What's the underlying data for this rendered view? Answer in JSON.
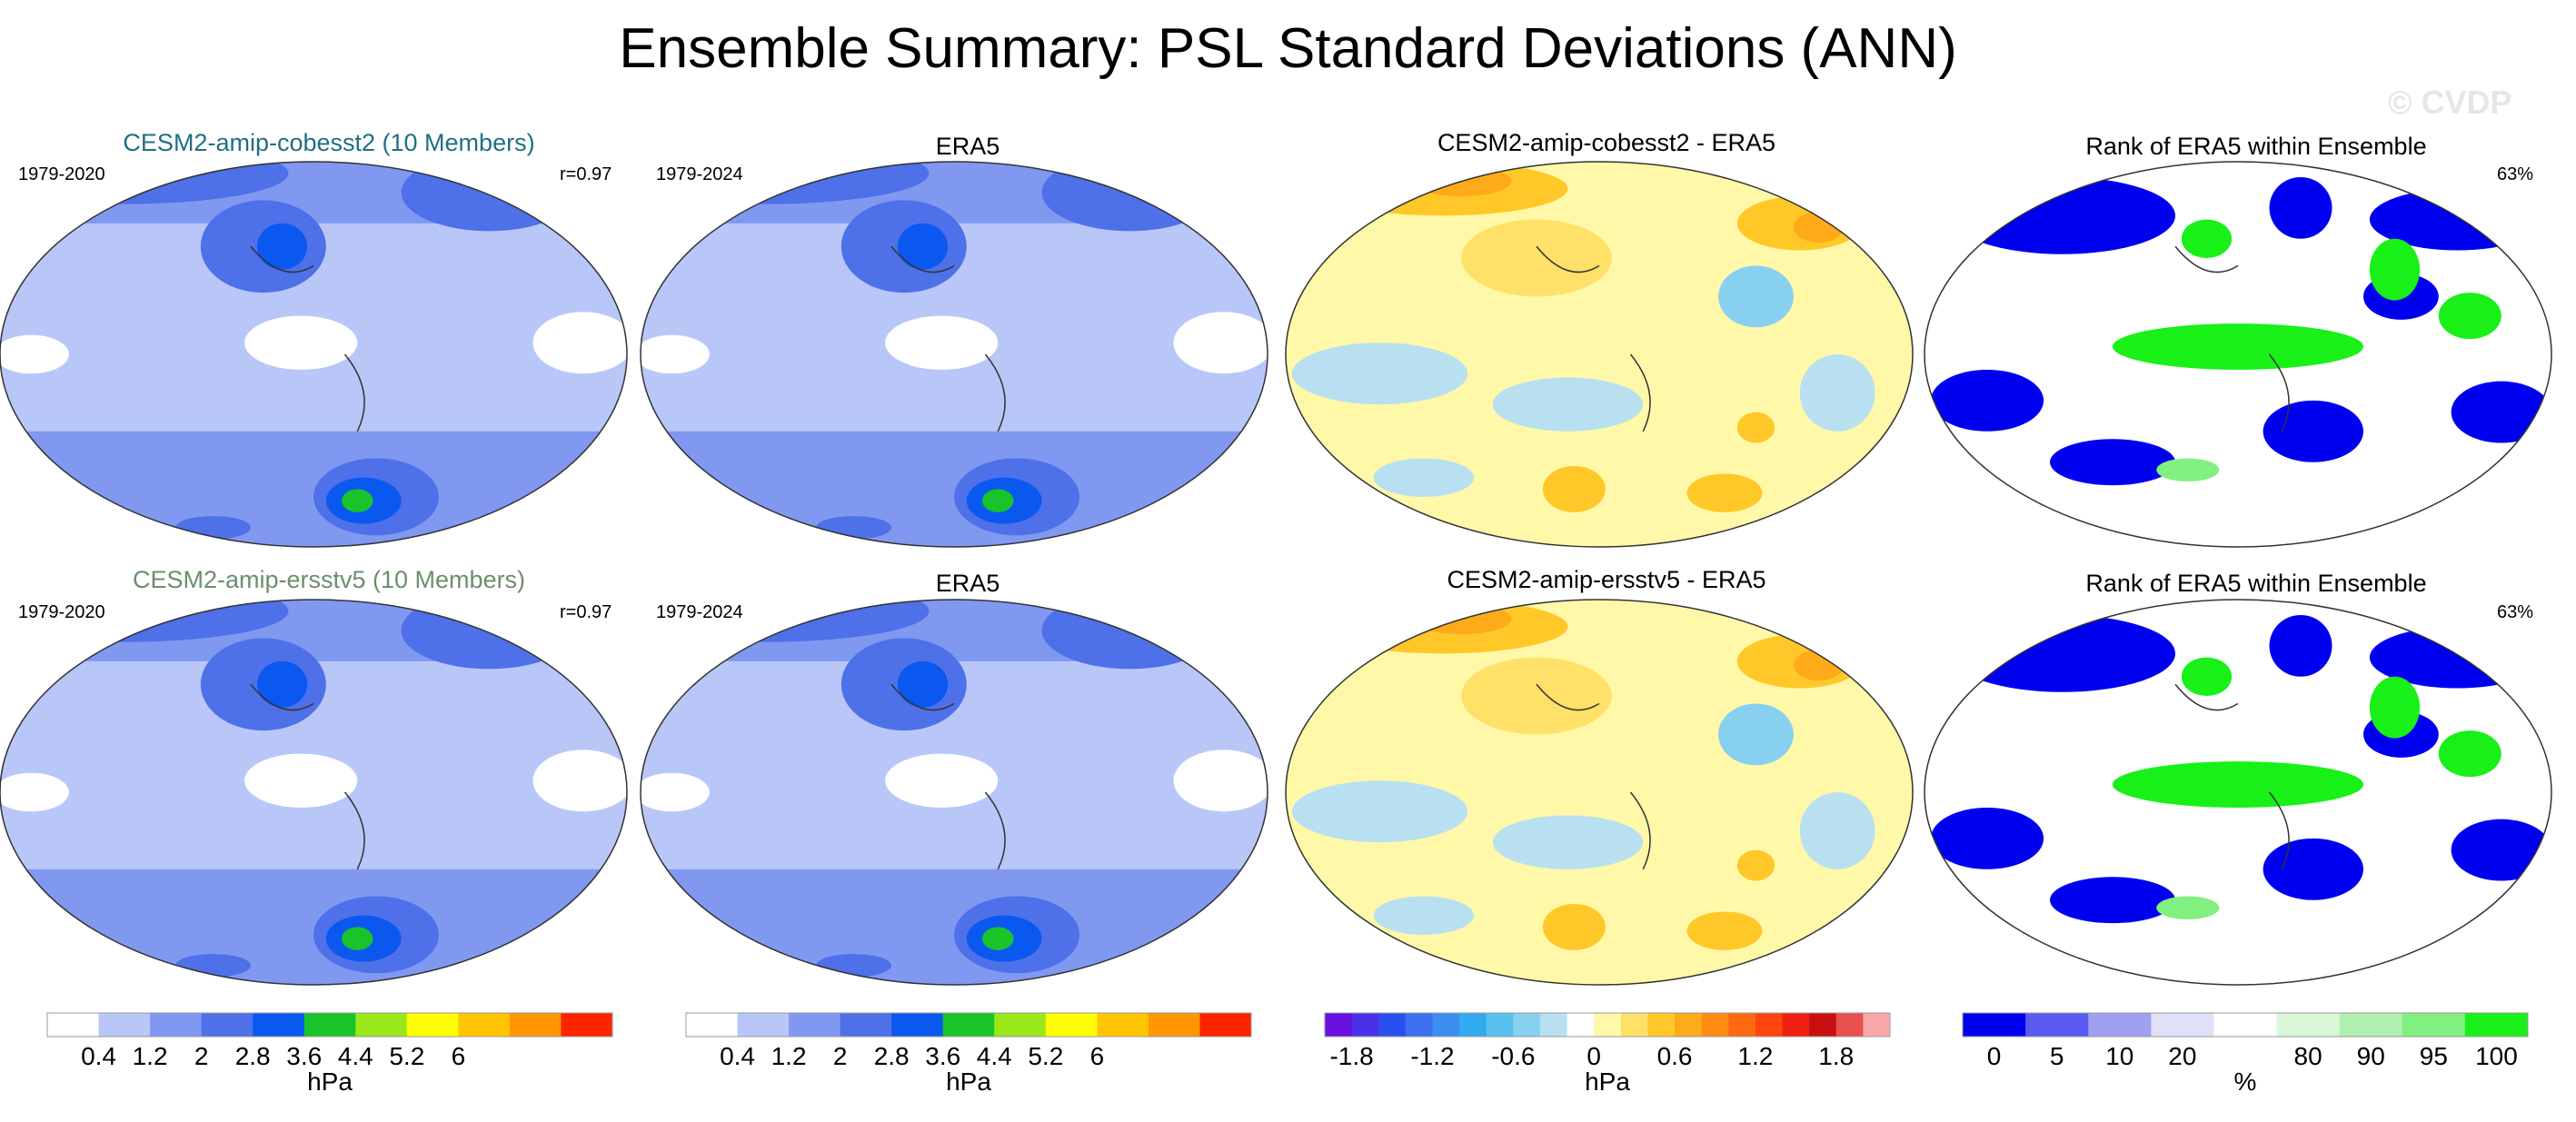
{
  "title": "Ensemble Summary: PSL Standard Deviations (ANN)",
  "watermark": "© CVDP",
  "colors": {
    "model1_title": "#1f6f82",
    "model2_title": "#6b8f6b",
    "sd_scale": [
      "#ffffff",
      "#b8c7f8",
      "#8098f0",
      "#4e70e8",
      "#0a58f0",
      "#18c42a",
      "#9ae81a",
      "#ffff00",
      "#ffc400",
      "#ff9600",
      "#ff2400"
    ],
    "diff_scale": [
      "#6a10e0",
      "#4a30e8",
      "#2850f0",
      "#3c70f0",
      "#3c8ef0",
      "#30aaf0",
      "#5ac0f0",
      "#88d0f0",
      "#b8e0f0",
      "#ffffff",
      "#fff8a8",
      "#ffe068",
      "#ffc828",
      "#ffaa18",
      "#ff8c10",
      "#ff6a10",
      "#ff4410",
      "#f02010",
      "#c81010",
      "#e85050",
      "#f8a8a8"
    ],
    "rank_scale": [
      "#0000f0",
      "#5a5af0",
      "#a0a0f0",
      "#e0e0f8",
      "#ffffff",
      "#d8f8d8",
      "#b0f0b0",
      "#80f080",
      "#18f018"
    ]
  },
  "panels": [
    {
      "title": "CESM2-amip-cobesst2 (10 Members)",
      "left": "1979-2020",
      "right": "r=0.97",
      "title_color": "model1_title"
    },
    {
      "title": "ERA5",
      "left": "1979-2024",
      "right": ""
    },
    {
      "title": "CESM2-amip-cobesst2 - ERA5",
      "left": "",
      "right": ""
    },
    {
      "title": "Rank of ERA5 within Ensemble",
      "left": "",
      "right": "63%"
    },
    {
      "title": "CESM2-amip-ersstv5 (10 Members)",
      "left": "1979-2020",
      "right": "r=0.97",
      "title_color": "model2_title"
    },
    {
      "title": "ERA5",
      "left": "1979-2024",
      "right": ""
    },
    {
      "title": "CESM2-amip-ersstv5 - ERA5",
      "left": "",
      "right": ""
    },
    {
      "title": "Rank of ERA5 within Ensemble",
      "left": "",
      "right": "63%"
    }
  ],
  "colorbars": [
    {
      "ticks": [
        "0.4",
        "1.2",
        "2",
        "2.8",
        "3.6",
        "4.4",
        "5.2",
        "6"
      ],
      "unit": "hPa"
    },
    {
      "ticks": [
        "0.4",
        "1.2",
        "2",
        "2.8",
        "3.6",
        "4.4",
        "5.2",
        "6"
      ],
      "unit": "hPa"
    },
    {
      "ticks": [
        "-1.8",
        "-1.2",
        "-0.6",
        "0",
        "0.6",
        "1.2",
        "1.8"
      ],
      "unit": "hPa"
    },
    {
      "ticks": [
        "0",
        "5",
        "10",
        "20",
        "80",
        "90",
        "95",
        "100"
      ],
      "unit": "%"
    }
  ],
  "chart_data": [
    {
      "type": "heatmap",
      "title": "CESM2-amip-cobesst2 (10 Members)",
      "variable": "PSL standard deviation",
      "units": "hPa",
      "period": "1979-2020",
      "pattern_correlation": 0.97,
      "contour_levels": [
        0.4,
        0.8,
        1.2,
        1.6,
        2,
        2.4,
        2.8,
        3.2,
        3.6,
        4,
        4.4,
        4.8,
        5.2,
        5.6,
        6
      ]
    },
    {
      "type": "heatmap",
      "title": "ERA5",
      "variable": "PSL standard deviation",
      "units": "hPa",
      "period": "1979-2024",
      "contour_levels": [
        0.4,
        0.8,
        1.2,
        1.6,
        2,
        2.4,
        2.8,
        3.2,
        3.6,
        4,
        4.4,
        4.8,
        5.2,
        5.6,
        6
      ]
    },
    {
      "type": "heatmap",
      "title": "CESM2-amip-cobesst2 - ERA5",
      "variable": "PSL standard deviation difference",
      "units": "hPa",
      "contour_levels": [
        -1.8,
        -1.2,
        -0.6,
        0,
        0.6,
        1.2,
        1.8
      ]
    },
    {
      "type": "heatmap",
      "title": "Rank of ERA5 within Ensemble",
      "units": "%",
      "area_fraction": "63%",
      "levels": [
        0,
        5,
        10,
        20,
        80,
        90,
        95,
        100
      ]
    },
    {
      "type": "heatmap",
      "title": "CESM2-amip-ersstv5 (10 Members)",
      "variable": "PSL standard deviation",
      "units": "hPa",
      "period": "1979-2020",
      "pattern_correlation": 0.97,
      "contour_levels": [
        0.4,
        0.8,
        1.2,
        1.6,
        2,
        2.4,
        2.8,
        3.2,
        3.6,
        4,
        4.4,
        4.8,
        5.2,
        5.6,
        6
      ]
    },
    {
      "type": "heatmap",
      "title": "ERA5",
      "variable": "PSL standard deviation",
      "units": "hPa",
      "period": "1979-2024",
      "contour_levels": [
        0.4,
        0.8,
        1.2,
        1.6,
        2,
        2.4,
        2.8,
        3.2,
        3.6,
        4,
        4.4,
        4.8,
        5.2,
        5.6,
        6
      ]
    },
    {
      "type": "heatmap",
      "title": "CESM2-amip-ersstv5 - ERA5",
      "variable": "PSL standard deviation difference",
      "units": "hPa",
      "contour_levels": [
        -1.8,
        -1.2,
        -0.6,
        0,
        0.6,
        1.2,
        1.8
      ]
    },
    {
      "type": "heatmap",
      "title": "Rank of ERA5 within Ensemble",
      "units": "%",
      "area_fraction": "63%",
      "levels": [
        0,
        5,
        10,
        20,
        80,
        90,
        95,
        100
      ]
    }
  ]
}
